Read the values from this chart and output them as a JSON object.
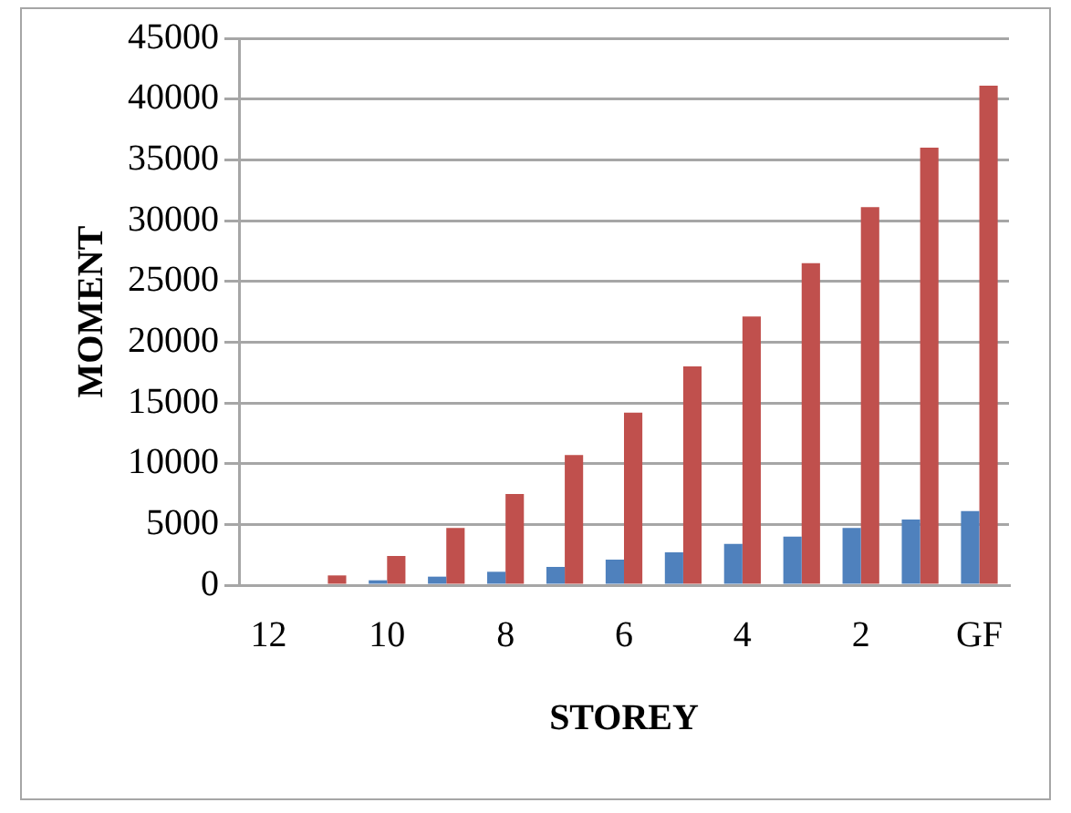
{
  "chart_data": {
    "type": "bar",
    "xlabel": "STOREY",
    "ylabel": "MOMENT",
    "categories": [
      "12",
      null,
      "10",
      null,
      "8",
      null,
      "6",
      null,
      "4",
      null,
      "2",
      null,
      "GF"
    ],
    "series": [
      {
        "color": "#4f81bd",
        "values": [
          0,
          null,
          400,
          700,
          1100,
          1500,
          2100,
          2700,
          3400,
          4000,
          4700,
          5400,
          6100
        ]
      },
      {
        "color": "#c0504d",
        "values": [
          0,
          800,
          2400,
          4700,
          7500,
          10700,
          14200,
          18000,
          22100,
          26500,
          31100,
          36000,
          41100
        ]
      }
    ],
    "ylim": [
      0,
      45000
    ],
    "yticks": [
      0,
      5000,
      10000,
      15000,
      20000,
      25000,
      30000,
      35000,
      40000,
      45000
    ],
    "grid": "y",
    "legend": false
  }
}
